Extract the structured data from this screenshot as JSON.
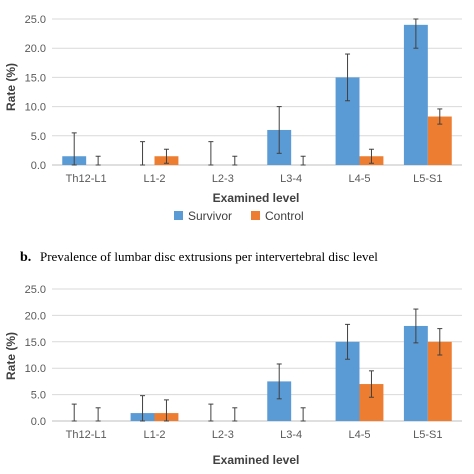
{
  "colors": {
    "survivor": "#5B9BD5",
    "control": "#ED7D31",
    "grid": "#D9D9D9",
    "axis": "#BFBFBF",
    "error": "#404040"
  },
  "chart_data": [
    {
      "type": "bar",
      "title": "",
      "xlabel": "Examined level",
      "ylabel": "Rate (%)",
      "ylim": [
        0,
        25
      ],
      "yticks": [
        "0.0",
        "5.0",
        "10.0",
        "15.0",
        "20.0",
        "25.0"
      ],
      "grid": true,
      "legend": "bottom",
      "categories": [
        "Th12-L1",
        "L1-2",
        "L2-3",
        "L3-4",
        "L4-5",
        "L5-S1"
      ],
      "series": [
        {
          "name": "Survivor",
          "values": [
            1.5,
            0,
            0,
            6.0,
            15.0,
            24.0
          ],
          "error": [
            4.0,
            4.0,
            4.0,
            4.0,
            4.0,
            4.0
          ]
        },
        {
          "name": "Control",
          "values": [
            0,
            1.5,
            0,
            0,
            1.5,
            8.3
          ],
          "error": [
            1.5,
            1.2,
            1.5,
            1.5,
            1.2,
            1.3
          ]
        }
      ]
    },
    {
      "type": "bar",
      "caption_letter": "b.",
      "title": "Prevalence of lumbar disc extrusions per intervertebral disc level",
      "xlabel": "Examined level",
      "ylabel": "Rate (%)",
      "ylim": [
        0,
        25
      ],
      "yticks": [
        "0.0",
        "5.0",
        "10.0",
        "15.0",
        "20.0",
        "25.0"
      ],
      "grid": true,
      "legend": "none",
      "categories": [
        "Th12-L1",
        "L1-2",
        "L2-3",
        "L3-4",
        "L4-5",
        "L5-S1"
      ],
      "series": [
        {
          "name": "Survivor",
          "values": [
            0,
            1.5,
            0,
            7.5,
            15.0,
            18.0
          ],
          "error": [
            3.2,
            3.3,
            3.2,
            3.3,
            3.3,
            3.2
          ]
        },
        {
          "name": "Control",
          "values": [
            0,
            1.5,
            0,
            0,
            7.0,
            15.0
          ],
          "error": [
            2.5,
            2.5,
            2.5,
            2.5,
            2.5,
            2.5
          ]
        }
      ]
    }
  ]
}
